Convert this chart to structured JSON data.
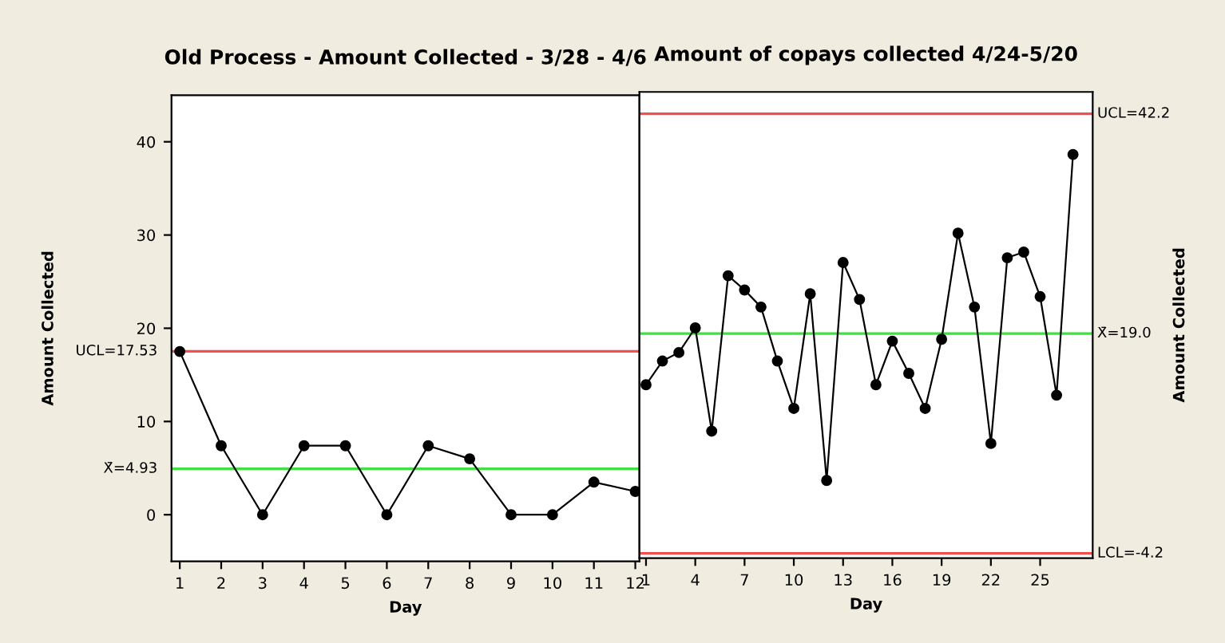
{
  "chart_data": [
    {
      "type": "line",
      "title": "Old Process - Amount Collected - 3/28 - 4/6",
      "xlabel": "Day",
      "ylabel": "Amount Collected",
      "x": [
        1,
        2,
        3,
        4,
        5,
        6,
        7,
        8,
        9,
        10,
        11,
        12
      ],
      "series": [
        {
          "color": "#000000",
          "values": [
            17.5,
            7.4,
            0,
            7.4,
            7.4,
            0,
            7.4,
            6.0,
            0,
            0,
            3.5,
            2.5
          ]
        }
      ],
      "marker": "circle",
      "grid": false,
      "xlim": [
        0.8,
        12.1
      ],
      "xticks": [
        1,
        2,
        3,
        4,
        5,
        6,
        7,
        8,
        9,
        10,
        11,
        12
      ],
      "ylim": [
        -5,
        45
      ],
      "yticks": [
        0,
        10,
        20,
        30,
        40
      ],
      "ref_lines": [
        {
          "axis": "y",
          "value": 17.53,
          "label": "UCL=17.53",
          "color": "#f05050"
        },
        {
          "axis": "y",
          "value": 4.93,
          "label": "X̄=4.93",
          "color": "#40e040"
        }
      ]
    },
    {
      "type": "line",
      "title": "Amount of copays collected 4/24-5/20",
      "xlabel": "Day",
      "ylabel": "Amount Collected",
      "x": [
        1,
        2,
        3,
        4,
        5,
        6,
        7,
        8,
        9,
        10,
        11,
        12,
        13,
        14,
        15,
        16,
        17,
        18,
        19,
        20,
        21,
        22,
        23,
        24,
        25,
        26,
        27
      ],
      "series": [
        {
          "color": "#000000",
          "values": [
            13.6,
            16.1,
            17.0,
            19.6,
            8.7,
            25.1,
            23.6,
            21.8,
            16.1,
            11.1,
            23.2,
            3.5,
            26.5,
            22.6,
            13.6,
            18.2,
            14.8,
            11.1,
            18.4,
            29.6,
            21.8,
            7.4,
            27.0,
            27.6,
            22.9,
            12.5,
            37.9
          ]
        }
      ],
      "marker": "circle",
      "grid": false,
      "tick_labels": "x",
      "xlim": [
        0.6,
        28.2
      ],
      "xticks": [
        1,
        4,
        7,
        10,
        13,
        16,
        19,
        22,
        25
      ],
      "ylim": [
        -4.7,
        44.5
      ],
      "ref_lines": [
        {
          "axis": "y",
          "value": 42.2,
          "label": "UCL=42.2",
          "color": "#f05050"
        },
        {
          "axis": "y",
          "value": 19.0,
          "label": "X̄=19.0",
          "color": "#40e040"
        },
        {
          "axis": "y",
          "value": -4.2,
          "label": "LCL=-4.2",
          "color": "#f05050"
        }
      ]
    }
  ]
}
